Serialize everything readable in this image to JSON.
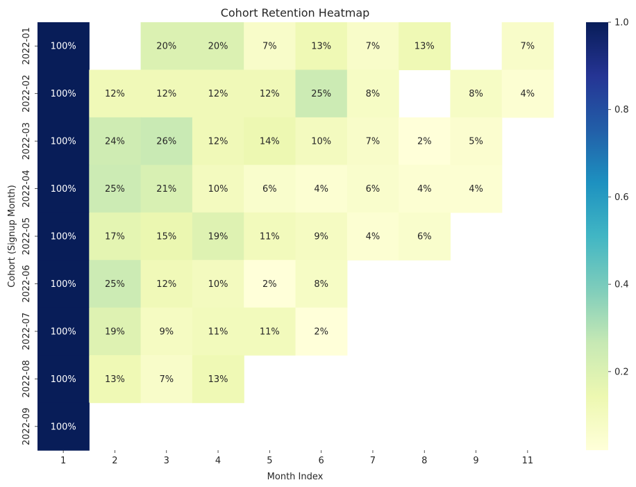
{
  "chart_data": {
    "type": "heatmap",
    "title": "Cohort Retention Heatmap",
    "xlabel": "Month Index",
    "ylabel": "Cohort (Signup Month)",
    "x_categories": [
      "1",
      "2",
      "3",
      "4",
      "5",
      "6",
      "7",
      "8",
      "9",
      "11"
    ],
    "y_categories": [
      "2022-01",
      "2022-02",
      "2022-03",
      "2022-04",
      "2022-05",
      "2022-06",
      "2022-07",
      "2022-08",
      "2022-09"
    ],
    "values": [
      [
        1.0,
        null,
        0.2,
        0.2,
        0.07,
        0.13,
        0.07,
        0.13,
        null,
        0.07
      ],
      [
        1.0,
        0.12,
        0.12,
        0.12,
        0.12,
        0.25,
        0.08,
        null,
        0.08,
        0.04
      ],
      [
        1.0,
        0.24,
        0.26,
        0.12,
        0.14,
        0.1,
        0.07,
        0.02,
        0.05,
        null
      ],
      [
        1.0,
        0.25,
        0.21,
        0.1,
        0.06,
        0.04,
        0.06,
        0.04,
        0.04,
        null
      ],
      [
        1.0,
        0.17,
        0.15,
        0.19,
        0.11,
        0.09,
        0.04,
        0.06,
        null,
        null
      ],
      [
        1.0,
        0.25,
        0.12,
        0.1,
        0.02,
        0.08,
        null,
        null,
        null,
        null
      ],
      [
        1.0,
        0.19,
        0.09,
        0.11,
        0.11,
        0.02,
        null,
        null,
        null,
        null
      ],
      [
        1.0,
        0.13,
        0.07,
        0.13,
        null,
        null,
        null,
        null,
        null,
        null
      ],
      [
        1.0,
        null,
        null,
        null,
        null,
        null,
        null,
        null,
        null,
        null
      ]
    ],
    "cell_labels": [
      [
        "100%",
        "",
        "20%",
        "20%",
        "7%",
        "13%",
        "7%",
        "13%",
        "",
        "7%"
      ],
      [
        "100%",
        "12%",
        "12%",
        "12%",
        "12%",
        "25%",
        "8%",
        "",
        "8%",
        "4%"
      ],
      [
        "100%",
        "24%",
        "26%",
        "12%",
        "14%",
        "10%",
        "7%",
        "2%",
        "5%",
        ""
      ],
      [
        "100%",
        "25%",
        "21%",
        "10%",
        "6%",
        "4%",
        "6%",
        "4%",
        "4%",
        ""
      ],
      [
        "100%",
        "17%",
        "15%",
        "19%",
        "11%",
        "9%",
        "4%",
        "6%",
        "",
        ""
      ],
      [
        "100%",
        "25%",
        "12%",
        "10%",
        "2%",
        "8%",
        "",
        "",
        "",
        ""
      ],
      [
        "100%",
        "19%",
        "9%",
        "11%",
        "11%",
        "2%",
        "",
        "",
        "",
        ""
      ],
      [
        "100%",
        "13%",
        "7%",
        "13%",
        "",
        "",
        "",
        "",
        "",
        ""
      ],
      [
        "100%",
        "",
        "",
        "",
        "",
        "",
        "",
        "",
        "",
        ""
      ]
    ],
    "colorbar": {
      "min": 0.02,
      "max": 1.0,
      "ticks": [
        "0.2",
        "0.4",
        "0.6",
        "0.8",
        "1.0"
      ],
      "tick_values": [
        0.2,
        0.4,
        0.6,
        0.8,
        1.0
      ],
      "colormap": "YlGnBu"
    },
    "grid": false,
    "colors": {
      "text_dark": "#262626",
      "text_light": "#ffffff"
    }
  }
}
